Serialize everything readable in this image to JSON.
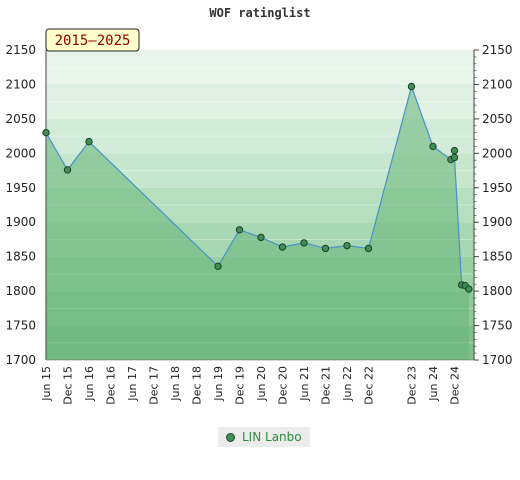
{
  "chart_data": {
    "type": "area",
    "title": "WOF ratinglist",
    "period_label": "2015–2025",
    "ylim": [
      1700,
      2150
    ],
    "yticks": [
      1700,
      1750,
      1800,
      1850,
      1900,
      1950,
      2000,
      2050,
      2100,
      2150
    ],
    "xticks": [
      "Jun 15",
      "Dec 15",
      "Jun 16",
      "Dec 16",
      "Jun 17",
      "Dec 17",
      "Jun 18",
      "Dec 18",
      "Jun 19",
      "Dec 19",
      "Jun 20",
      "Dec 20",
      "Jun 21",
      "Dec 21",
      "Jun 22",
      "Dec 22",
      "Dec 23",
      "Jun 24",
      "Dec 24"
    ],
    "grid": true,
    "legend_position": "bottom",
    "colors": {
      "fill": "#66b577",
      "line": "#4a90c8",
      "marker": "#3d8f55"
    },
    "series": [
      {
        "name": "LIN Lanbo",
        "points": [
          {
            "x": "Jun 15",
            "y": 2030
          },
          {
            "x": "Dec 15",
            "y": 1976
          },
          {
            "x": "Jun 16",
            "y": 2017
          },
          {
            "x": "Jun 19",
            "y": 1836
          },
          {
            "x": "Dec 19",
            "y": 1889
          },
          {
            "x": "Jun 20",
            "y": 1878
          },
          {
            "x": "Dec 20",
            "y": 1864
          },
          {
            "x": "Jun 21",
            "y": 1870
          },
          {
            "x": "Dec 21",
            "y": 1862
          },
          {
            "x": "Jun 22",
            "y": 1866
          },
          {
            "x": "Dec 22",
            "y": 1862
          },
          {
            "x": "Dec 23",
            "y": 2097
          },
          {
            "x": "Jun 24",
            "y": 2010
          },
          {
            "x": "Nov 24",
            "y": 1991
          },
          {
            "x": "Dec 24",
            "y": 2004
          },
          {
            "x": "Dec 24",
            "y": 1994
          },
          {
            "x": "Feb 25",
            "y": 1809
          },
          {
            "x": "Mar 25",
            "y": 1808
          },
          {
            "x": "Apr 25",
            "y": 1803
          }
        ]
      }
    ]
  }
}
